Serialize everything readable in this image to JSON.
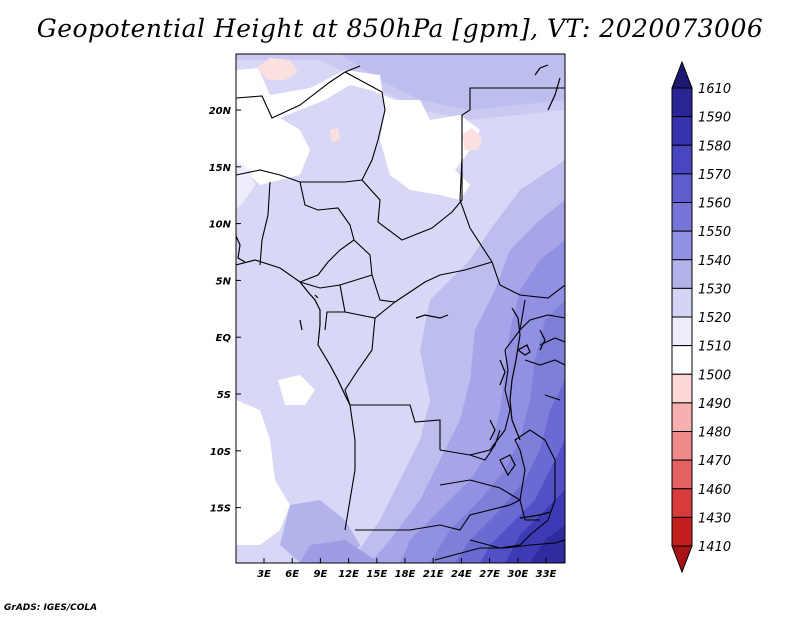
{
  "title": "Geopotential Height at 850hPa [gpm], VT: 2020073006",
  "credit": "GrADS: IGES/COLA",
  "map": {
    "lat_labels": [
      "20N",
      "15N",
      "10N",
      "5N",
      "EQ",
      "5S",
      "10S",
      "15S"
    ],
    "lon_labels": [
      "3E",
      "6E",
      "9E",
      "12E",
      "15E",
      "18E",
      "21E",
      "24E",
      "27E",
      "30E",
      "33E"
    ],
    "lat_range": [
      -20,
      25
    ],
    "lon_range": [
      0,
      35
    ]
  },
  "colorbar": {
    "labels": [
      "1610",
      "1590",
      "1580",
      "1570",
      "1560",
      "1550",
      "1540",
      "1530",
      "1520",
      "1510",
      "1500",
      "1490",
      "1480",
      "1470",
      "1460",
      "1430",
      "1410"
    ],
    "colors": [
      "#1e1873",
      "#2a2494",
      "#3733ae",
      "#4a46c2",
      "#5f5ccd",
      "#7776d8",
      "#9190e2",
      "#b3b3ec",
      "#d4d4f5",
      "#ededfb",
      "#ffffff",
      "#fdd7d7",
      "#f7b0b0",
      "#ee8a8a",
      "#e46262",
      "#d83b3b",
      "#c41f1f",
      "#a81414"
    ]
  }
}
